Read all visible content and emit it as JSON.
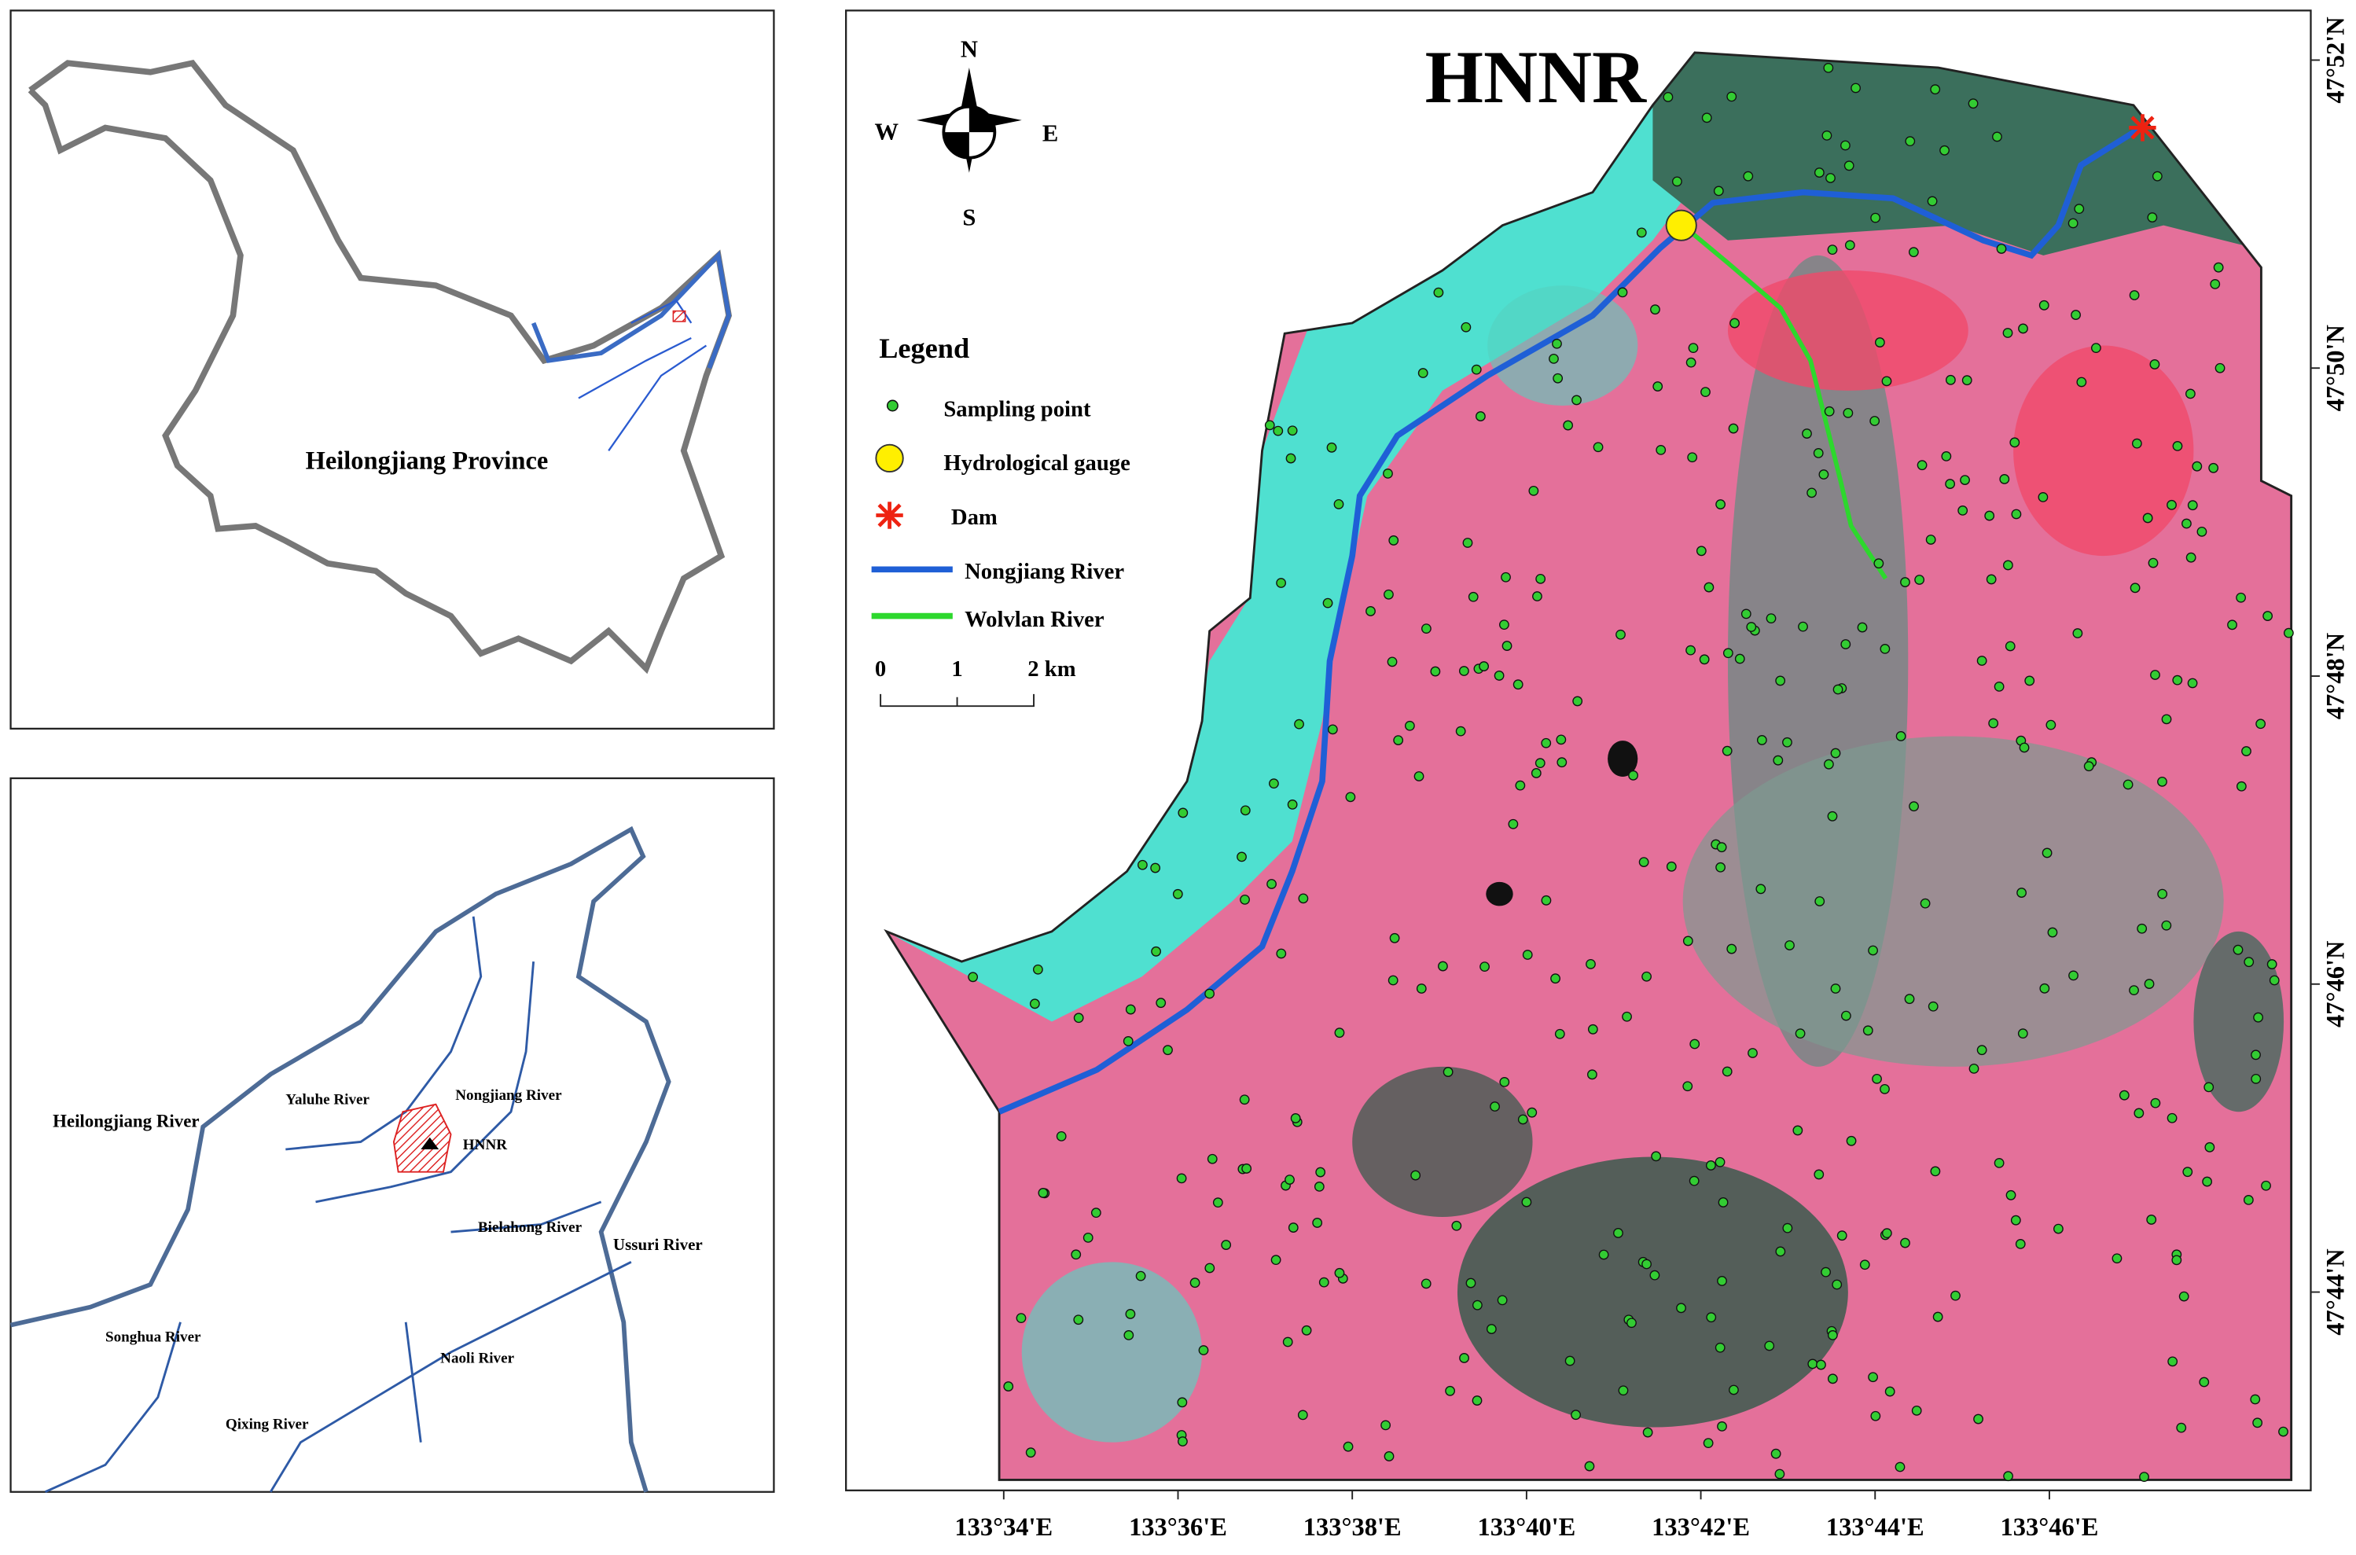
{
  "inset_province": {
    "label": "Heilongjiang Province"
  },
  "inset_rivers": {
    "labels": [
      "Heilongjiang River",
      "Yaluhe River",
      "Nongjiang River",
      "HNNR",
      "Bielahong River",
      "Ussuri River",
      "Songhua River",
      "Naoli River",
      "Qixing River"
    ]
  },
  "main_map": {
    "title": "HNNR",
    "compass": [
      "N",
      "S",
      "W",
      "E"
    ],
    "legend": {
      "title": "Legend",
      "items": [
        "Sampling point",
        "Hydrological gauge",
        "Dam",
        "Nongjiang River",
        "Wolvlan River"
      ]
    },
    "scale_bar": {
      "labels": [
        "0",
        "1",
        "2 km"
      ]
    },
    "x_labels": [
      "133°34'E",
      "133°36'E",
      "133°38'E",
      "133°40'E",
      "133°42'E",
      "133°44'E",
      "133°46'E"
    ],
    "y_labels": [
      "47°52'N",
      "47°50'N",
      "47°48'N",
      "47°46'N",
      "47°44'N"
    ]
  }
}
